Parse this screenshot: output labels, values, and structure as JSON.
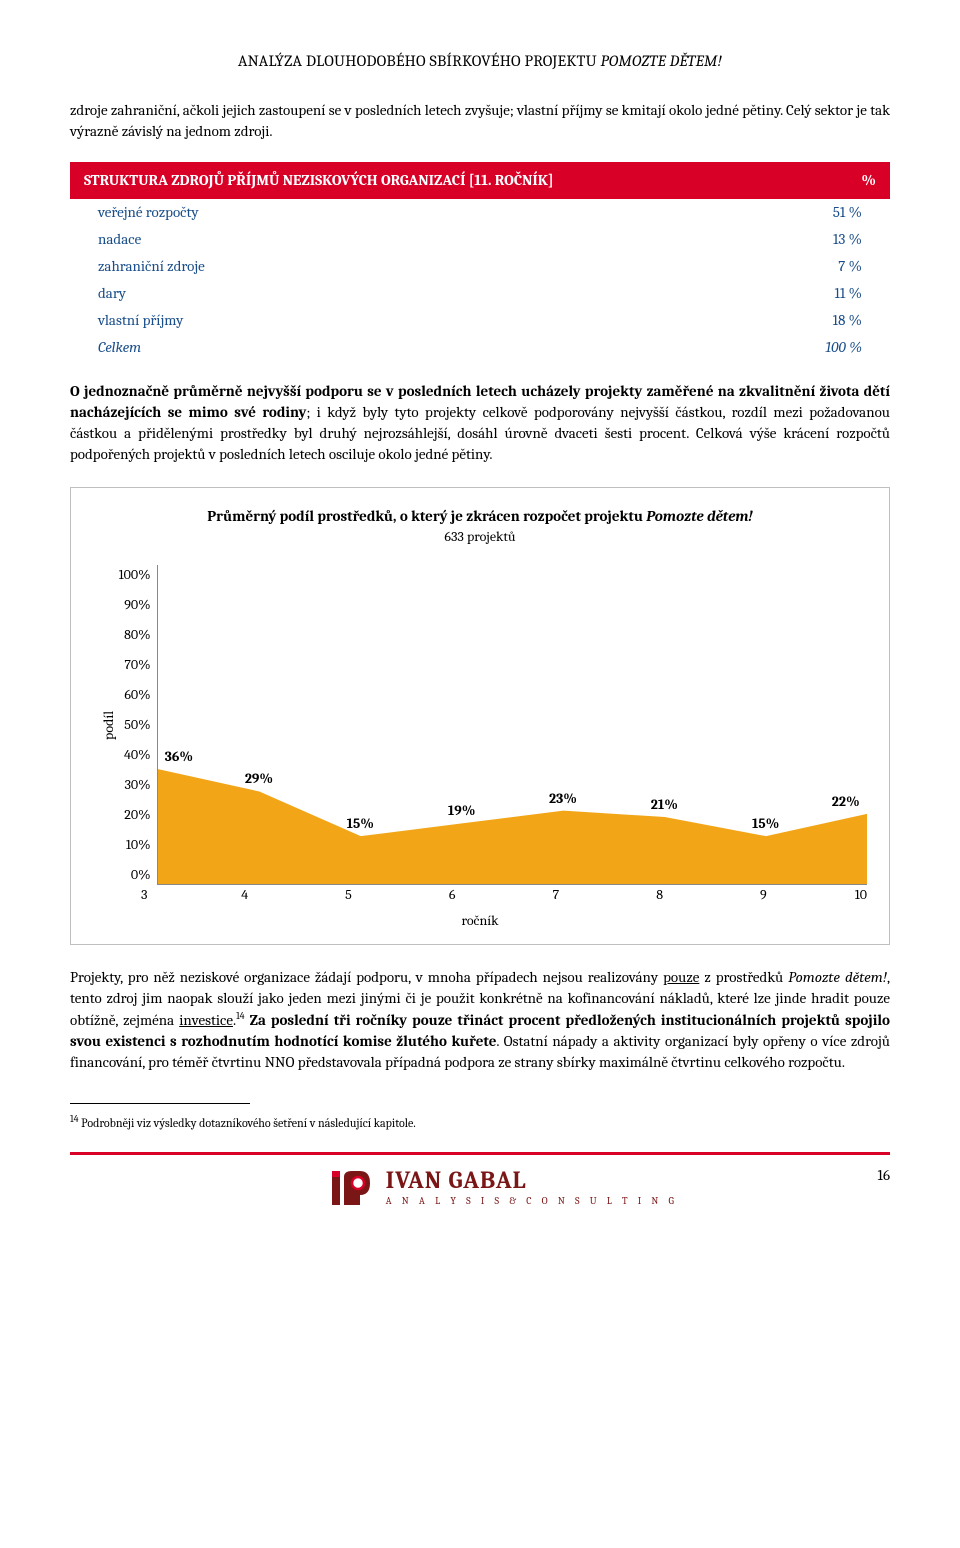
{
  "header": {
    "title_plain": "ANALÝZA DLOUHODOBÉHO SBÍRKOVÉHO PROJEKTU ",
    "title_italic": "POMOZTE DĚTEM!"
  },
  "para1": "zdroje zahraniční, ačkoli jejich zastoupení se v posledních letech zvyšuje; vlastní příjmy se kmitají okolo jedné pětiny. Celý sektor je tak výrazně závislý na jednom zdroji.",
  "table": {
    "header_left": "STRUKTURA ZDROJŮ PŘÍJMŮ NEZISKOVÝCH ORGANIZACÍ [11. ROČNÍK]",
    "header_right": "%",
    "rows": [
      {
        "label": "veřejné rozpočty",
        "value": "51 %"
      },
      {
        "label": "nadace",
        "value": "13 %"
      },
      {
        "label": "zahraniční zdroje",
        "value": "7 %"
      },
      {
        "label": "dary",
        "value": "11 %"
      },
      {
        "label": "vlastní příjmy",
        "value": "18 %"
      },
      {
        "label": "Celkem",
        "value": "100 %"
      }
    ],
    "label_color": "#1a4e8a",
    "header_bg": "#d80027",
    "header_fg": "#ffffff"
  },
  "para2_bold": "O jednoznačně průměrně nejvyšší podporu se v posledních letech ucházely projekty zaměřené na zkvalitnění života dětí nacházejících se mimo své rodiny",
  "para2_rest": "; i když byly tyto projekty celkově podporovány nejvyšší částkou, rozdíl mezi požadovanou částkou a přidělenými prostředky byl druhý nejrozsáhlejší, dosáhl úrovně dvaceti šesti procent. Celková výše krácení rozpočtů podpořených projektů v posledních letech osciluje okolo jedné pětiny.",
  "chart": {
    "title_prefix": "Průměrný podíl prostředků, o který je zkrácen rozpočet projektu ",
    "title_italic": "Pomozte dětem!",
    "subtitle": "633 projektů",
    "type": "area",
    "y_label": "podíl",
    "x_label": "ročník",
    "ylim": [
      0,
      100
    ],
    "ytick_step": 10,
    "yticks": [
      "100%",
      "90%",
      "80%",
      "70%",
      "60%",
      "50%",
      "40%",
      "30%",
      "20%",
      "10%",
      "0%"
    ],
    "x_categories": [
      "3",
      "4",
      "5",
      "6",
      "7",
      "8",
      "9",
      "10"
    ],
    "values": [
      36,
      29,
      15,
      19,
      23,
      21,
      15,
      22
    ],
    "value_labels": [
      "36%",
      "29%",
      "15%",
      "19%",
      "23%",
      "21%",
      "15%",
      "22%"
    ],
    "fill_color": "#f2a516",
    "label_fontsize": 14,
    "title_fontsize": 15,
    "background_color": "#ffffff",
    "axis_color": "#888888",
    "border_color": "#bfbfbf"
  },
  "para3_a": "Projekty, pro něž neziskové organizace žádají podporu, v mnoha případech nejsou realizovány ",
  "para3_u1": "pouze",
  "para3_b": " z prostředků ",
  "para3_i1": "Pomozte dětem!",
  "para3_c": ", tento zdroj jim naopak slouží jako jeden mezi jinými či je použit konkrétně na kofinancování nákladů, které lze jinde hradit pouze obtížně, zejména ",
  "para3_u2": "investice",
  "para3_d": ".",
  "para3_fn": "14",
  "para3_bold": " Za poslední tři ročníky pouze třináct procent předložených institucionálních projektů spojilo svou existenci s rozhodnutím hodnotící komise žlutého kuřete",
  "para3_e": ". Ostatní nápady a aktivity organizací byly opřeny o více zdrojů financování, pro téměř čtvrtinu NNO představovala případná podpora ze strany sbírky maximálně čtvrtinu celkového rozpočtu.",
  "footnote": {
    "num": "14",
    "text": " Podrobněji viz výsledky dotazníkového šetření v následující kapitole."
  },
  "footer": {
    "page_num": "16",
    "logo_name": "IVAN GABAL",
    "logo_tag": "A N A L Y S I S  &  C O N S U L T I N G",
    "logo_color": "#7a1616",
    "accent": "#d80027"
  }
}
